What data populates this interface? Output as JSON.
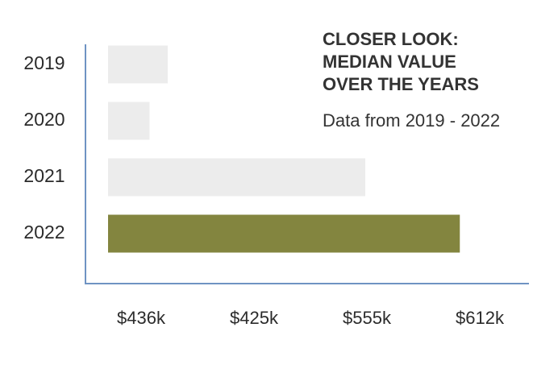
{
  "chart_data": {
    "type": "barh",
    "title": [
      "CLOSER LOOK:",
      "MEDIAN VALUE",
      "OVER THE YEARS"
    ],
    "subtitle": "Data from 2019 - 2022",
    "categories": [
      "2019",
      "2020",
      "2021",
      "2022"
    ],
    "values": [
      436000,
      425000,
      555000,
      612000
    ],
    "value_labels": [
      "$436k",
      "$425k",
      "$555k",
      "$612k"
    ],
    "colors": [
      "#ececec",
      "#ececec",
      "#ececec",
      "#83853f"
    ],
    "xlim": [
      400000,
      625000
    ]
  }
}
